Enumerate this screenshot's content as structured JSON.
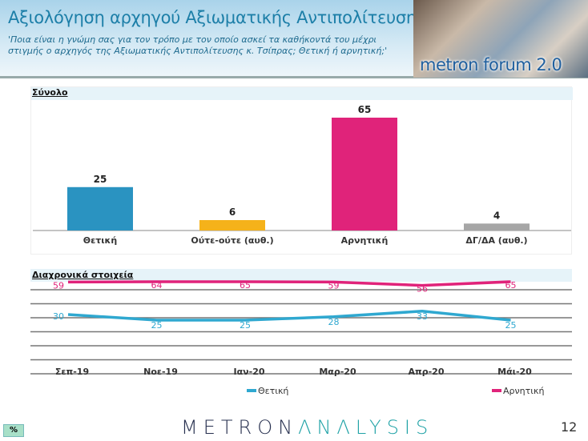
{
  "header": {
    "title": "Αξιολόγηση αρχηγού Αξιωματικής Αντιπολίτευσης",
    "subtitle": "'Ποια είναι η γνώμη σας για τον τρόπο με τον οποίο ασκεί τα καθήκοντά του μέχρι στιγμής ο αρχηγός της Αξιωματικής Αντιπολίτευσης κ. Τσίπρας; Θετική ή αρνητική;'",
    "brand": "metron forum 2.0"
  },
  "chart_data": [
    {
      "type": "bar",
      "title": "Σύνολο",
      "categories": [
        "Θετική",
        "Ούτε-ούτε (αυθ.)",
        "Αρνητική",
        "ΔΓ/ΔΑ (αυθ.)"
      ],
      "values": [
        25,
        6,
        65,
        4
      ],
      "colors": [
        "#2a93c1",
        "#f5b21a",
        "#e0237a",
        "#a6a6a6"
      ],
      "ylim": [
        0,
        70
      ]
    },
    {
      "type": "line",
      "title": "Διαχρονικά στοιχεία",
      "categories": [
        "Σεπ-19",
        "Νοε-19",
        "Ιαν-20",
        "Μαρ-20",
        "Απρ-20",
        "Μάι-20"
      ],
      "series": [
        {
          "name": "Θετική",
          "values": [
            30,
            25,
            25,
            28,
            33,
            25
          ],
          "color": "#2fa8d0"
        },
        {
          "name": "Αρνητική",
          "values": [
            59,
            64,
            65,
            59,
            56,
            65
          ],
          "color": "#e0237a"
        }
      ],
      "legend": "bottom"
    }
  ],
  "footer": {
    "unit": "%",
    "logo_left": "METRON",
    "logo_right": "ΛNΛLYSIS",
    "page": "12"
  }
}
